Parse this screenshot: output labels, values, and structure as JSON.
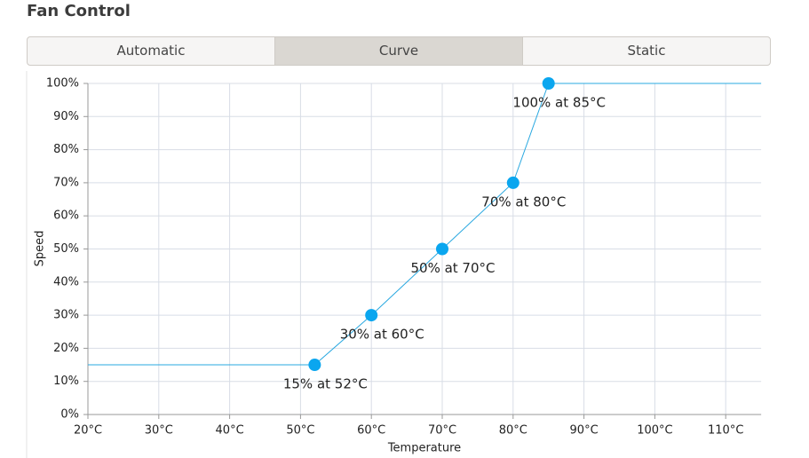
{
  "header": {
    "title": "Fan Control"
  },
  "tabs": {
    "items": [
      "Automatic",
      "Curve",
      "Static"
    ],
    "selected": 1
  },
  "chart_data": {
    "type": "line",
    "x_label": "Temperature",
    "y_label": "Speed",
    "series": [
      {
        "name": "Curve",
        "color": "#29a8e0",
        "point_color": "#0aa6ef",
        "x": [
          52,
          60,
          70,
          80,
          85
        ],
        "values": [
          15,
          30,
          50,
          70,
          100
        ],
        "value_labels": [
          "15% at 52°C",
          "30% at 60°C",
          "50% at 70°C",
          "70% at 80°C",
          "100% at 85°C"
        ]
      }
    ],
    "xlim": [
      20,
      115
    ],
    "ylim": [
      0,
      100
    ],
    "xticks": [
      {
        "value": 20,
        "label": "20°C"
      },
      {
        "value": 30,
        "label": "30°C"
      },
      {
        "value": 40,
        "label": "40°C"
      },
      {
        "value": 50,
        "label": "50°C"
      },
      {
        "value": 60,
        "label": "60°C"
      },
      {
        "value": 70,
        "label": "70°C"
      },
      {
        "value": 80,
        "label": "80°C"
      },
      {
        "value": 90,
        "label": "90°C"
      },
      {
        "value": 100,
        "label": "100°C"
      },
      {
        "value": 110,
        "label": "110°C"
      }
    ],
    "yticks": [
      {
        "value": 0,
        "label": "0%"
      },
      {
        "value": 10,
        "label": "10%"
      },
      {
        "value": 20,
        "label": "20%"
      },
      {
        "value": 30,
        "label": "30%"
      },
      {
        "value": 40,
        "label": "40%"
      },
      {
        "value": 50,
        "label": "50%"
      },
      {
        "value": 60,
        "label": "60%"
      },
      {
        "value": 70,
        "label": "70%"
      },
      {
        "value": 80,
        "label": "80%"
      },
      {
        "value": 90,
        "label": "90%"
      },
      {
        "value": 100,
        "label": "100%"
      }
    ],
    "grid": true
  }
}
